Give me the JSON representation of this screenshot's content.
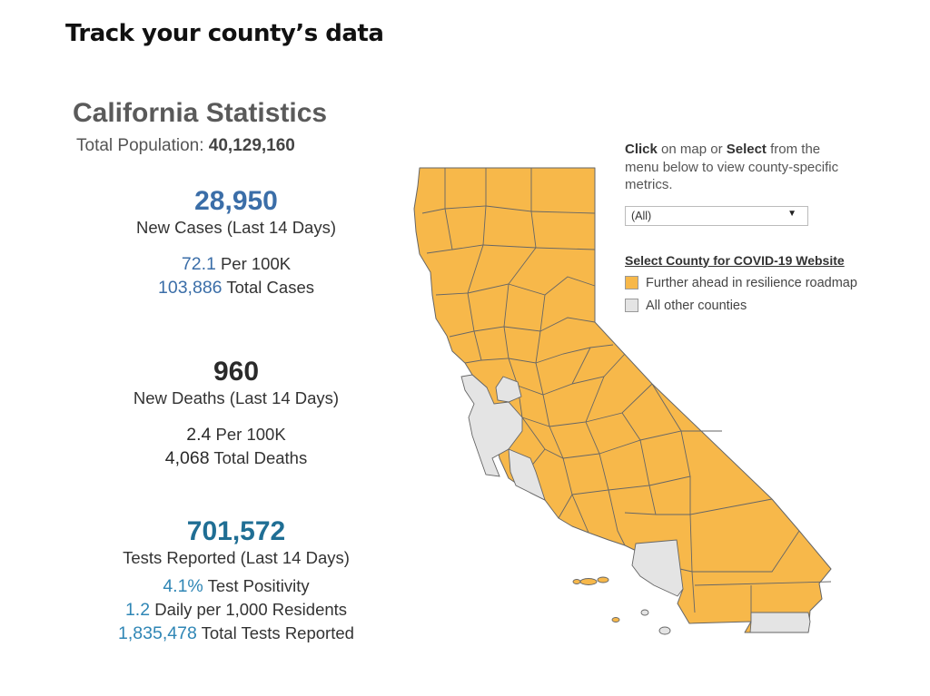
{
  "header": {
    "title": "Track your county’s data"
  },
  "stats": {
    "title": "California Statistics",
    "population_label": "Total Population:",
    "population_value": "40,129,160",
    "cases": {
      "new_value": "28,950",
      "new_label": "New Cases (Last 14 Days)",
      "per100k_value": "72.1",
      "per100k_label": "Per 100K",
      "total_value": "103,886",
      "total_label": "Total Cases"
    },
    "deaths": {
      "new_value": "960",
      "new_label": "New Deaths (Last 14 Days)",
      "per100k_value": "2.4",
      "per100k_label": "Per 100K",
      "total_value": "4,068",
      "total_label": "Total Deaths"
    },
    "tests": {
      "new_value": "701,572",
      "new_label": "Tests Reported (Last 14 Days)",
      "positivity_value": "4.1%",
      "positivity_label": "Test Positivity",
      "daily_value": "1.2",
      "daily_label": "Daily per 1,000 Residents",
      "total_value": "1,835,478",
      "total_label": "Total Tests Reported"
    }
  },
  "panel": {
    "click_bold": "Click",
    "click_text": " on map or ",
    "select_bold": "Select",
    "select_text": " from the menu below to view county-specific metrics.",
    "dropdown_value": "(All)",
    "legend_title": "Select County for COVID-19 Website",
    "legend_items": [
      {
        "label": "Further ahead in resilience roadmap",
        "color": "#f7b84a"
      },
      {
        "label": "All other counties",
        "color": "#e4e4e4"
      }
    ]
  },
  "map": {
    "colors": {
      "ahead": "#f7b84a",
      "other": "#e4e4e4",
      "border": "#666666"
    }
  }
}
